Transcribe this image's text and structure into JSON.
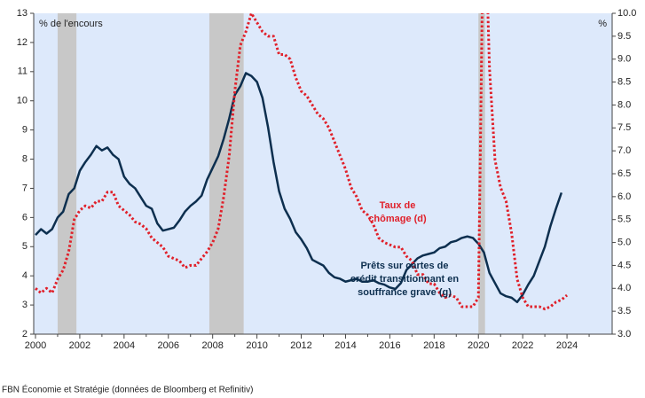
{
  "chart_data": {
    "type": "line",
    "axis_label_left": "% de l'encours",
    "axis_label_right": "%",
    "source": "FBN Économie et Stratégie (données de Bloomberg et Refinitiv)",
    "xlim": [
      1999.92,
      2026.04
    ],
    "xticks": [
      2000,
      2002,
      2004,
      2006,
      2008,
      2010,
      2012,
      2014,
      2016,
      2018,
      2020,
      2022,
      2024
    ],
    "xminorticks": [
      2001,
      2003,
      2005,
      2007,
      2009,
      2011,
      2013,
      2015,
      2017,
      2019,
      2021,
      2023,
      2025
    ],
    "ylim": [
      2,
      13
    ],
    "yticks": [
      2,
      3,
      4,
      5,
      6,
      7,
      8,
      9,
      10,
      11,
      12,
      13
    ],
    "y2lim": [
      3,
      10
    ],
    "y2ticks": [
      {
        "value": 3,
        "label": "3.0"
      },
      {
        "value": 3.5,
        "label": "3.5"
      },
      {
        "value": 4,
        "label": "4.0"
      },
      {
        "value": 4.5,
        "label": "4.5"
      },
      {
        "value": 5,
        "label": "5.0"
      },
      {
        "value": 5.5,
        "label": "5.5"
      },
      {
        "value": 6,
        "label": "6.0"
      },
      {
        "value": 6.5,
        "label": "6.5"
      },
      {
        "value": 7,
        "label": "7.0"
      },
      {
        "value": 7.5,
        "label": "7.5"
      },
      {
        "value": 8,
        "label": "8.0"
      },
      {
        "value": 8.5,
        "label": "8.5"
      },
      {
        "value": 9,
        "label": "9.0"
      },
      {
        "value": 9.5,
        "label": "9.5"
      },
      {
        "value": 10,
        "label": "10.0"
      }
    ],
    "recessions": [
      [
        2001.0,
        2001.85
      ],
      [
        2007.85,
        2009.4
      ],
      [
        2020.0,
        2020.3
      ]
    ],
    "annotations": [
      {
        "lines": [
          "Taux de",
          "chômage (d)"
        ],
        "color": "#e0202a"
      },
      {
        "lines": [
          "Prêts sur cartes de",
          "crédit transitionnant en",
          "souffrance grave (g)"
        ],
        "color": "#0d2f4f"
      }
    ],
    "series": [
      {
        "name": "Prêts sur cartes de crédit transitionnant en souffrance grave (g)",
        "color": "#0d2f4f",
        "axis": "y",
        "dash": false,
        "x": [
          2000,
          2000.25,
          2000.5,
          2000.75,
          2001,
          2001.25,
          2001.5,
          2001.75,
          2002,
          2002.25,
          2002.5,
          2002.75,
          2003,
          2003.25,
          2003.5,
          2003.75,
          2004,
          2004.25,
          2004.5,
          2004.75,
          2005,
          2005.25,
          2005.5,
          2005.75,
          2006,
          2006.25,
          2006.5,
          2006.75,
          2007,
          2007.25,
          2007.5,
          2007.75,
          2008,
          2008.25,
          2008.5,
          2008.75,
          2009,
          2009.25,
          2009.5,
          2009.75,
          2010,
          2010.25,
          2010.5,
          2010.75,
          2011,
          2011.25,
          2011.5,
          2011.75,
          2012,
          2012.25,
          2012.5,
          2012.75,
          2013,
          2013.25,
          2013.5,
          2013.75,
          2014,
          2014.25,
          2014.5,
          2014.75,
          2015,
          2015.25,
          2015.5,
          2015.75,
          2016,
          2016.25,
          2016.5,
          2016.75,
          2017,
          2017.25,
          2017.5,
          2017.75,
          2018,
          2018.25,
          2018.5,
          2018.75,
          2019,
          2019.25,
          2019.5,
          2019.75,
          2020,
          2020.25,
          2020.5,
          2020.75,
          2021,
          2021.25,
          2021.5,
          2021.75,
          2022,
          2022.25,
          2022.5,
          2022.75,
          2023,
          2023.25,
          2023.5,
          2023.75
        ],
        "values": [
          5.4,
          5.6,
          5.45,
          5.6,
          6.0,
          6.2,
          6.8,
          7.0,
          7.6,
          7.9,
          8.15,
          8.45,
          8.3,
          8.4,
          8.15,
          8.0,
          7.4,
          7.15,
          7.0,
          6.7,
          6.4,
          6.3,
          5.8,
          5.55,
          5.6,
          5.65,
          5.9,
          6.2,
          6.4,
          6.55,
          6.75,
          7.3,
          7.7,
          8.1,
          8.7,
          9.4,
          10.2,
          10.5,
          10.95,
          10.85,
          10.65,
          10.1,
          9.1,
          7.9,
          6.9,
          6.3,
          5.95,
          5.5,
          5.25,
          4.95,
          4.55,
          4.45,
          4.35,
          4.1,
          3.95,
          3.9,
          3.8,
          3.85,
          3.9,
          3.8,
          3.8,
          3.85,
          3.75,
          3.7,
          3.6,
          3.55,
          3.75,
          4.2,
          4.4,
          4.6,
          4.7,
          4.75,
          4.8,
          4.95,
          5.0,
          5.15,
          5.2,
          5.3,
          5.35,
          5.3,
          5.1,
          4.8,
          4.1,
          3.75,
          3.4,
          3.3,
          3.25,
          3.1,
          3.35,
          3.7,
          4.0,
          4.5,
          5.0,
          5.7,
          6.3,
          6.85
        ]
      },
      {
        "name": "Taux de chômage (d)",
        "color": "#e0202a",
        "axis": "y2",
        "dash": true,
        "x": [
          2000,
          2000.25,
          2000.5,
          2000.75,
          2001,
          2001.25,
          2001.5,
          2001.75,
          2002,
          2002.25,
          2002.5,
          2002.75,
          2003,
          2003.25,
          2003.5,
          2003.75,
          2004,
          2004.25,
          2004.5,
          2004.75,
          2005,
          2005.25,
          2005.5,
          2005.75,
          2006,
          2006.25,
          2006.5,
          2006.75,
          2007,
          2007.25,
          2007.5,
          2007.75,
          2008,
          2008.25,
          2008.5,
          2008.75,
          2009,
          2009.25,
          2009.5,
          2009.75,
          2010,
          2010.25,
          2010.5,
          2010.75,
          2011,
          2011.25,
          2011.5,
          2011.75,
          2012,
          2012.25,
          2012.5,
          2012.75,
          2013,
          2013.25,
          2013.5,
          2013.75,
          2014,
          2014.25,
          2014.5,
          2014.75,
          2015,
          2015.25,
          2015.5,
          2015.75,
          2016,
          2016.25,
          2016.5,
          2016.75,
          2017,
          2017.25,
          2017.5,
          2017.75,
          2018,
          2018.25,
          2018.5,
          2018.75,
          2019,
          2019.25,
          2019.5,
          2019.75,
          2020,
          2020.25,
          2020.5,
          2020.75,
          2021,
          2021.25,
          2021.5,
          2021.75,
          2022,
          2022.25,
          2022.5,
          2022.75,
          2023,
          2023.25,
          2023.5,
          2023.75,
          2024
        ],
        "values": [
          4.0,
          3.9,
          4.0,
          3.9,
          4.2,
          4.4,
          4.8,
          5.5,
          5.7,
          5.8,
          5.75,
          5.9,
          5.9,
          6.1,
          6.1,
          5.8,
          5.7,
          5.6,
          5.45,
          5.4,
          5.3,
          5.1,
          5.0,
          4.9,
          4.7,
          4.65,
          4.6,
          4.45,
          4.5,
          4.5,
          4.65,
          4.8,
          5.0,
          5.3,
          6.0,
          6.9,
          8.3,
          9.3,
          9.6,
          10.0,
          9.8,
          9.6,
          9.5,
          9.5,
          9.1,
          9.1,
          9.0,
          8.6,
          8.3,
          8.2,
          8.0,
          7.8,
          7.7,
          7.5,
          7.2,
          6.9,
          6.6,
          6.2,
          6.0,
          5.7,
          5.6,
          5.4,
          5.1,
          5.0,
          4.95,
          4.9,
          4.9,
          4.7,
          4.6,
          4.3,
          4.3,
          4.1,
          4.1,
          3.9,
          3.8,
          3.85,
          3.8,
          3.6,
          3.6,
          3.6,
          3.8,
          13.0,
          8.8,
          6.8,
          6.2,
          5.9,
          5.2,
          4.2,
          3.8,
          3.6,
          3.6,
          3.6,
          3.55,
          3.6,
          3.7,
          3.75,
          3.85
        ]
      }
    ]
  }
}
